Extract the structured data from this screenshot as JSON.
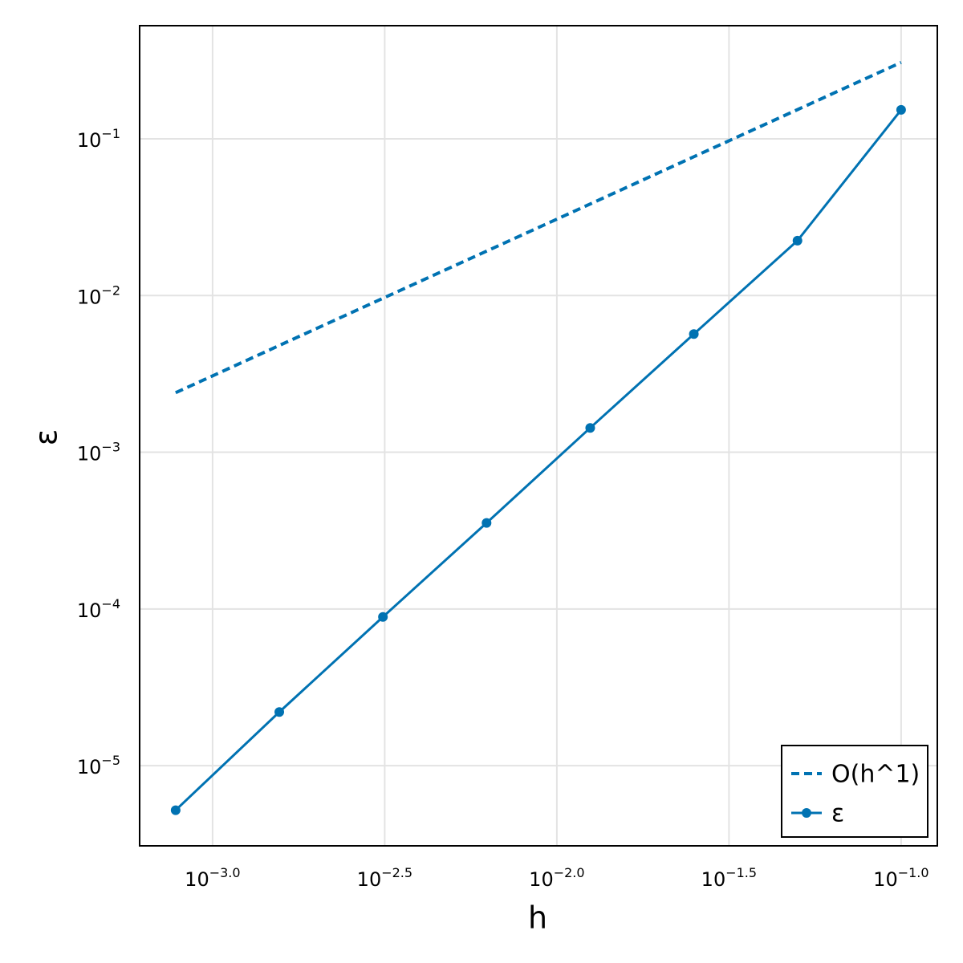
{
  "chart_data": {
    "type": "line",
    "xlabel": "h",
    "ylabel": "ε",
    "x": [
      0.00078125,
      0.0015625,
      0.003125,
      0.00625,
      0.0125,
      0.025,
      0.05,
      0.1
    ],
    "series": [
      {
        "name": "O(h^1)",
        "color": "#0072b2",
        "dash": true,
        "marker": false,
        "values": [
          0.0024,
          0.0048,
          0.0096,
          0.0192,
          0.0384,
          0.0768,
          0.1535,
          0.307
        ]
      },
      {
        "name": "ε",
        "color": "#0072b2",
        "dash": false,
        "marker": true,
        "values": [
          5.2e-06,
          2.2e-05,
          8.9e-05,
          0.000354,
          0.00143,
          0.00568,
          0.0224,
          0.153
        ]
      }
    ],
    "xscale": "log",
    "yscale": "log",
    "xlim": [
      0.000614,
      0.1274
    ],
    "ylim": [
      3.08e-06,
      0.527
    ],
    "xticks": [
      {
        "value": 0.001,
        "label": "10−3.0"
      },
      {
        "value": 0.0031623,
        "label": "10−2.5"
      },
      {
        "value": 0.01,
        "label": "10−2.0"
      },
      {
        "value": 0.031623,
        "label": "10−1.5"
      },
      {
        "value": 0.1,
        "label": "10−1.0"
      }
    ],
    "yticks": [
      {
        "value": 0.1,
        "label": "10−1"
      },
      {
        "value": 0.01,
        "label": "10−2"
      },
      {
        "value": 0.001,
        "label": "10−3"
      },
      {
        "value": 0.0001,
        "label": "10−4"
      },
      {
        "value": 1e-05,
        "label": "10−5"
      }
    ],
    "grid": true,
    "legend": "bottom-right"
  }
}
